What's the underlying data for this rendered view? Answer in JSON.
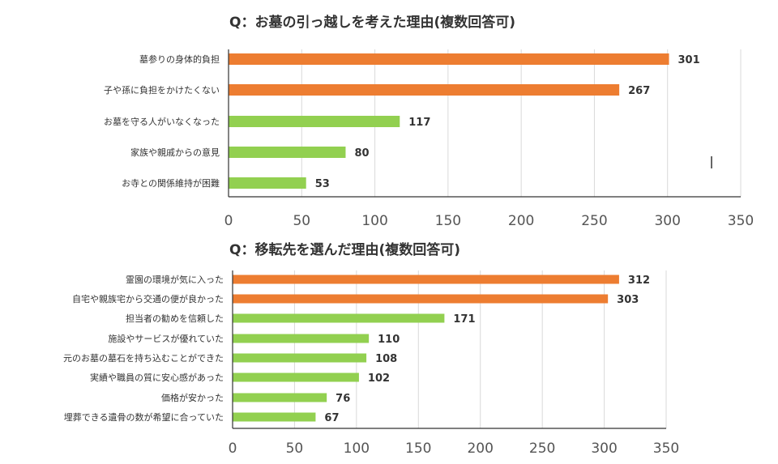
{
  "chart_data": [
    {
      "type": "bar",
      "orientation": "horizontal",
      "title": "Q：お墓の引っ越しを考えた理由(複数回答可)",
      "categories": [
        "墓参りの身体的負担",
        "子や孫に負担をかけたくない",
        "お墓を守る人がいなくなった",
        "家族や親戚からの意見",
        "お寺との関係維持が困難"
      ],
      "values": [
        301,
        267,
        117,
        80,
        53
      ],
      "bar_colors": [
        "#ed7d31",
        "#ed7d31",
        "#92d050",
        "#92d050",
        "#92d050"
      ],
      "xlim": [
        0,
        350
      ],
      "ticks": [
        "0",
        "50",
        "100",
        "150",
        "200",
        "250",
        "300",
        "350"
      ],
      "grid": true
    },
    {
      "type": "bar",
      "orientation": "horizontal",
      "title": "Q：移転先を選んだ理由(複数回答可)",
      "categories": [
        "霊園の環境が気に入った",
        "自宅や親族宅から交通の便が良かった",
        "担当者の勧めを信頼した",
        "施設やサービスが優れていた",
        "元のお墓の墓石を持ち込むことができた",
        "実績や職員の質に安心感があった",
        "価格が安かった",
        "埋葬できる遺骨の数が希望に合っていた"
      ],
      "values": [
        312,
        303,
        171,
        110,
        108,
        102,
        76,
        67
      ],
      "bar_colors": [
        "#ed7d31",
        "#ed7d31",
        "#92d050",
        "#92d050",
        "#92d050",
        "#92d050",
        "#92d050",
        "#92d050"
      ],
      "xlim": [
        0,
        350
      ],
      "ticks": [
        "0",
        "50",
        "100",
        "150",
        "200",
        "250",
        "300",
        "350"
      ],
      "grid": true
    }
  ]
}
